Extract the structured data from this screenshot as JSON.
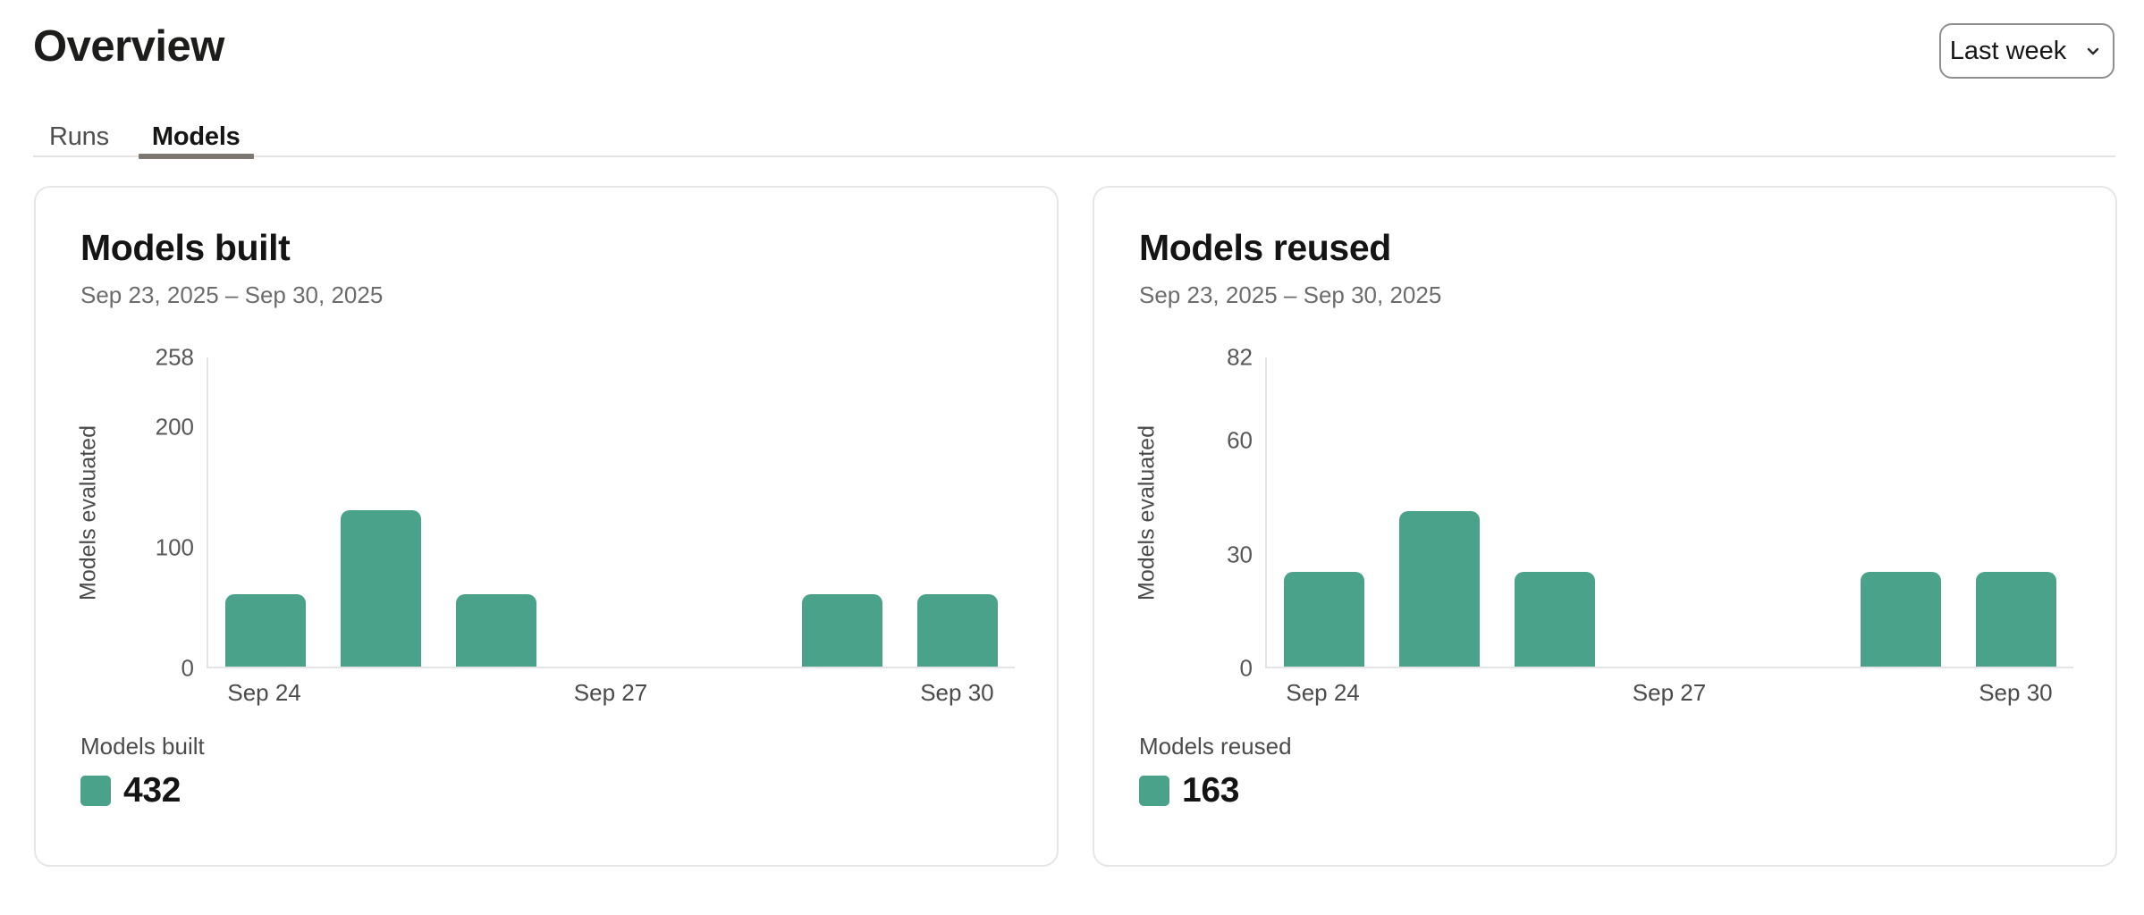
{
  "page": {
    "title": "Overview"
  },
  "tabs": [
    {
      "label": "Runs",
      "active": false
    },
    {
      "label": "Models",
      "active": true
    }
  ],
  "range_selector": {
    "value": "Last week",
    "icon": "chevron-down"
  },
  "colors": {
    "accent": "#4BA28B",
    "axis_line": "#E5E5E5",
    "text_primary": "#161616",
    "text_muted": "#6C6C6C"
  },
  "cards": [
    {
      "title": "Models built",
      "date_range": "Sep 23, 2025 – Sep 30, 2025",
      "legend_label": "Models built",
      "total": "432"
    },
    {
      "title": "Models reused",
      "date_range": "Sep 23, 2025 – Sep 30, 2025",
      "legend_label": "Models reused",
      "total": "163"
    }
  ],
  "chart_data": [
    {
      "type": "bar",
      "title": "Models built",
      "ylabel": "Models evaluated",
      "categories": [
        "Sep 24",
        "Sep 25",
        "Sep 26",
        "Sep 27",
        "Sep 28",
        "Sep 29",
        "Sep 30"
      ],
      "values": [
        60,
        130,
        60,
        0,
        0,
        60,
        60
      ],
      "ylim": [
        0,
        258
      ],
      "yticks": [
        0,
        100,
        200,
        258
      ],
      "xtick_indices": [
        0,
        3,
        6
      ],
      "xtick_labels": [
        "Sep 24",
        "Sep 27",
        "Sep 30"
      ],
      "bar_color": "#4BA28B",
      "grid": false,
      "legend": {
        "label": "Models built",
        "total": 432,
        "position": "bottom-left"
      }
    },
    {
      "type": "bar",
      "title": "Models reused",
      "ylabel": "Models evaluated",
      "categories": [
        "Sep 24",
        "Sep 25",
        "Sep 26",
        "Sep 27",
        "Sep 28",
        "Sep 29",
        "Sep 30"
      ],
      "values": [
        25,
        41,
        25,
        0,
        0,
        25,
        25
      ],
      "ylim": [
        0,
        82
      ],
      "yticks": [
        0,
        30,
        60,
        82
      ],
      "xtick_indices": [
        0,
        3,
        6
      ],
      "xtick_labels": [
        "Sep 24",
        "Sep 27",
        "Sep 30"
      ],
      "bar_color": "#4BA28B",
      "grid": false,
      "legend": {
        "label": "Models reused",
        "total": 163,
        "position": "bottom-left"
      }
    }
  ]
}
